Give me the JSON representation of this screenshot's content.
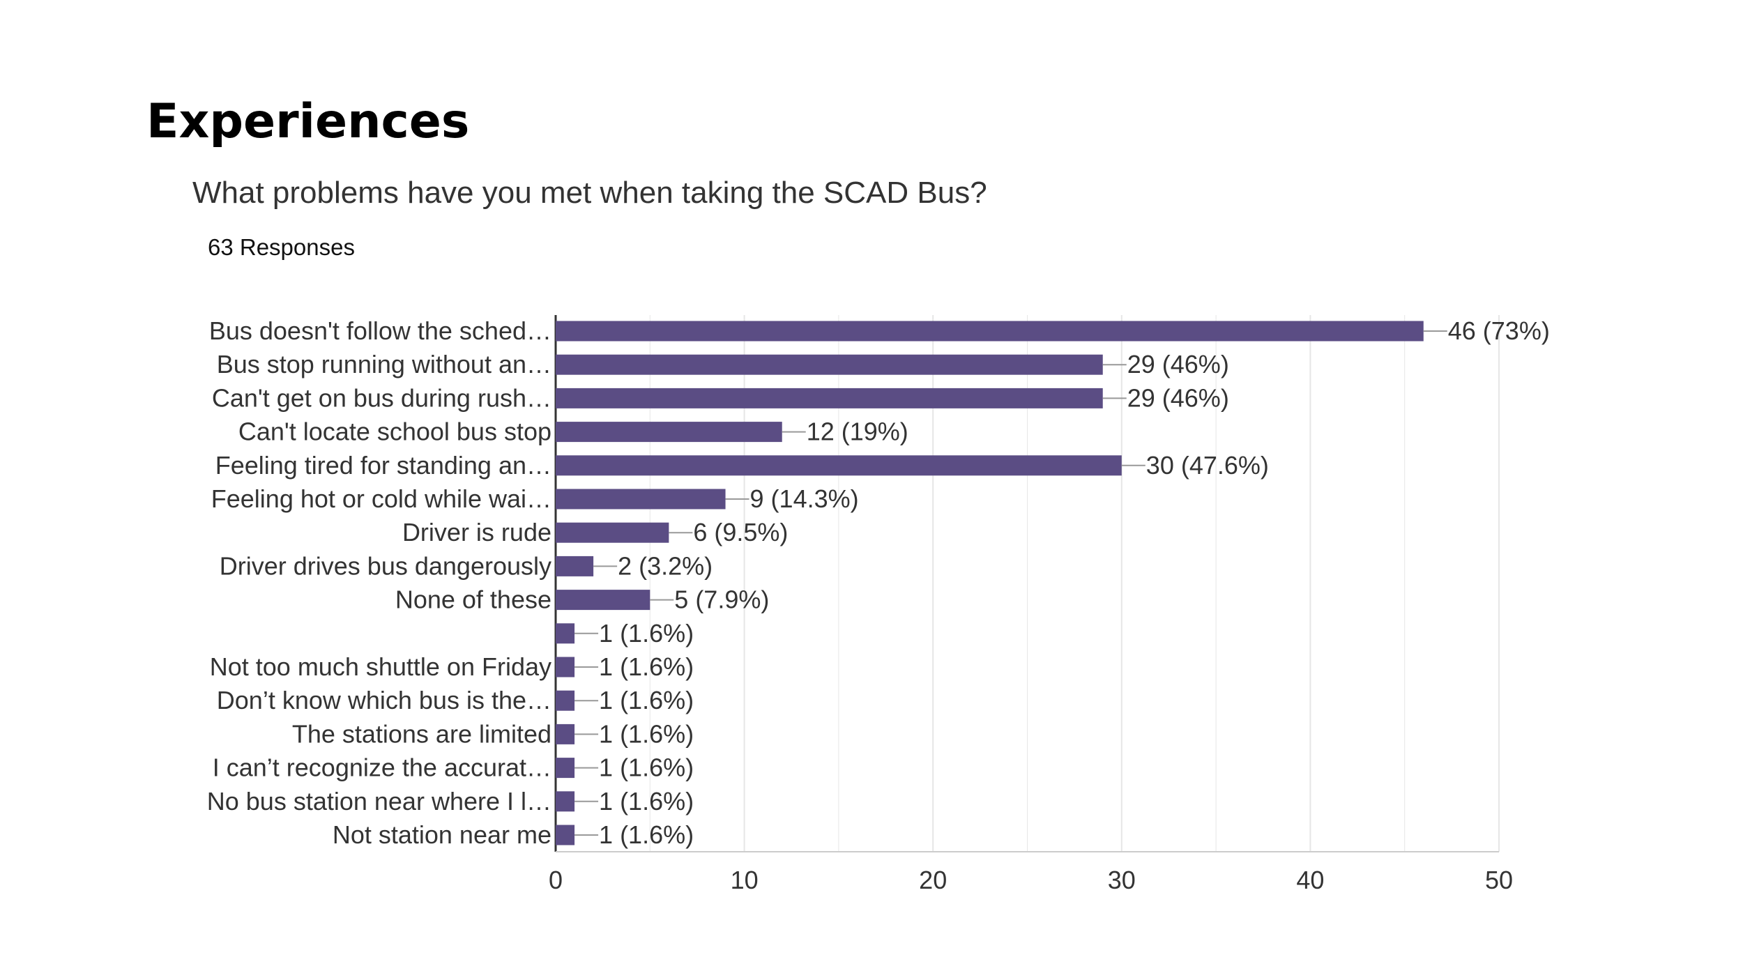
{
  "slide": {
    "heading": "Experiences",
    "question": "What problems have you met when taking the SCAD Bus?",
    "responses": "63 Responses"
  },
  "colors": {
    "bar": "#5b4d84",
    "grid": "#e6e6e6",
    "axis": "#333333",
    "leader": "#999999"
  },
  "chart_data": {
    "type": "bar",
    "orientation": "horizontal",
    "title": "What problems have you met when taking the SCAD Bus?",
    "xlabel": "",
    "ylabel": "",
    "xlim": [
      0,
      50
    ],
    "ticks": [
      0,
      10,
      20,
      30,
      40,
      50
    ],
    "categories": [
      "Bus doesn't follow the sched…",
      "Bus stop running without an…",
      "Can't get on bus during rush…",
      "Can't locate school bus stop",
      "Feeling tired for standing an…",
      "Feeling hot or cold while wai…",
      "Driver is rude",
      "Driver drives bus dangerously",
      "None of these",
      "",
      "Not too much shuttle on Friday",
      "Don’t know which bus is the…",
      "The stations are limited",
      "I can’t recognize the accurat…",
      "No bus station near where I l…",
      "Not station near me"
    ],
    "values": [
      46,
      29,
      29,
      12,
      30,
      9,
      6,
      2,
      5,
      1,
      1,
      1,
      1,
      1,
      1,
      1
    ],
    "data_labels": [
      "46 (73%)",
      "29 (46%)",
      "29 (46%)",
      "12 (19%)",
      "30 (47.6%)",
      "9 (14.3%)",
      "6 (9.5%)",
      "2 (3.2%)",
      "5 (7.9%)",
      "1 (1.6%)",
      "1 (1.6%)",
      "1 (1.6%)",
      "1 (1.6%)",
      "1 (1.6%)",
      "1 (1.6%)",
      "1 (1.6%)"
    ]
  }
}
